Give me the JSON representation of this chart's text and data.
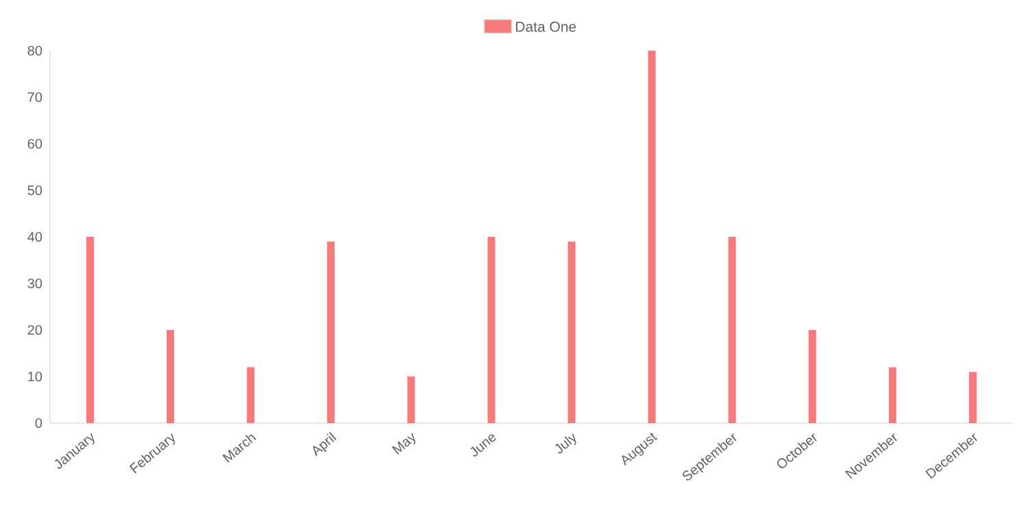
{
  "chart_data": {
    "type": "bar",
    "categories": [
      "January",
      "February",
      "March",
      "April",
      "May",
      "June",
      "July",
      "August",
      "September",
      "October",
      "November",
      "December"
    ],
    "series": [
      {
        "name": "Data One",
        "color": "#f87979",
        "values": [
          40,
          20,
          12,
          39,
          10,
          40,
          39,
          80,
          40,
          20,
          12,
          11
        ]
      }
    ],
    "ylim": [
      0,
      80
    ],
    "yticks": [
      0,
      10,
      20,
      30,
      40,
      50,
      60,
      70,
      80
    ],
    "grid": false,
    "legend": "top"
  }
}
